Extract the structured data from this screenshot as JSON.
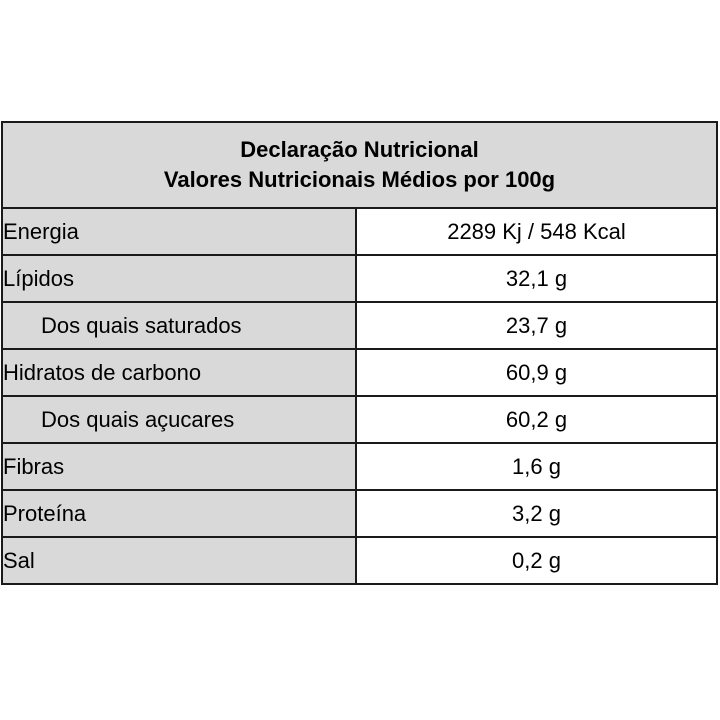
{
  "header": {
    "title": "Declaração Nutricional",
    "subtitle": "Valores Nutricionais Médios por 100g"
  },
  "rows": [
    {
      "label": "Energia",
      "value": "2289 Kj / 548 Kcal",
      "indent": false
    },
    {
      "label": "Lípidos",
      "value": "32,1 g",
      "indent": false
    },
    {
      "label": "Dos quais saturados",
      "value": "23,7 g",
      "indent": true
    },
    {
      "label": "Hidratos de carbono",
      "value": "60,9 g",
      "indent": false
    },
    {
      "label": "Dos quais açucares",
      "value": "60,2 g",
      "indent": true
    },
    {
      "label": "Fibras",
      "value": "1,6 g",
      "indent": false
    },
    {
      "label": "Proteína",
      "value": "3,2 g",
      "indent": false
    },
    {
      "label": "Sal",
      "value": "0,2 g",
      "indent": false
    }
  ],
  "colors": {
    "header_bg": "#d9d9d9",
    "label_bg": "#d9d9d9",
    "value_bg": "#ffffff",
    "border": "#1a1a1a"
  }
}
